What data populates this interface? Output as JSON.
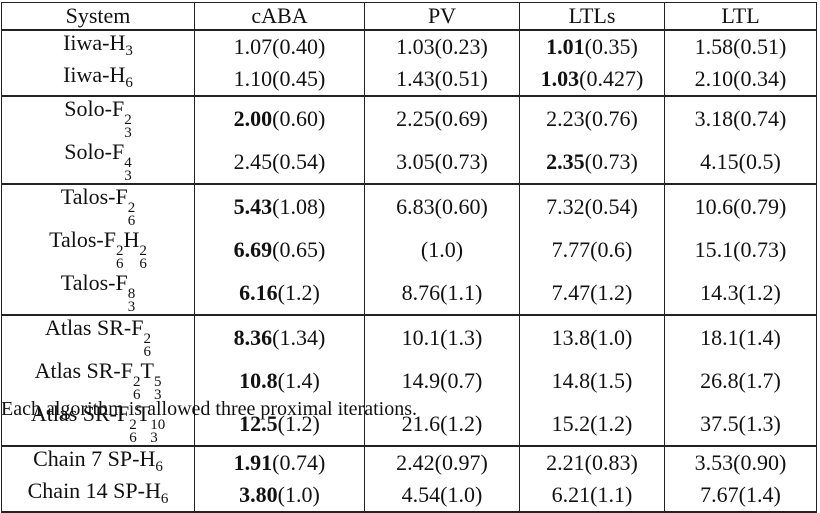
{
  "table": {
    "header": [
      "System",
      "cABA",
      "PV",
      "LTLs",
      "LTL"
    ],
    "groups": [
      [
        {
          "system": [
            "Iiwa-H",
            {
              "sub": "3"
            }
          ],
          "cells": [
            {
              "mean": "1.07",
              "sd": "(0.40)"
            },
            {
              "mean": "1.03",
              "sd": "(0.23)"
            },
            {
              "mean": "1.01",
              "sd": "(0.35)",
              "bold": true
            },
            {
              "mean": "1.58",
              "sd": "(0.51)"
            }
          ]
        },
        {
          "system": [
            "Iiwa-H",
            {
              "sub": "6"
            }
          ],
          "cells": [
            {
              "mean": "1.10",
              "sd": "(0.45)"
            },
            {
              "mean": "1.43",
              "sd": "(0.51)"
            },
            {
              "mean": "1.03",
              "sd": "(0.427)",
              "bold": true
            },
            {
              "mean": "2.10",
              "sd": "(0.34)"
            }
          ]
        }
      ],
      [
        {
          "system": [
            "Solo-F",
            {
              "sup": "2",
              "sub": "3"
            }
          ],
          "cells": [
            {
              "mean": "2.00",
              "sd": "(0.60)",
              "bold": true
            },
            {
              "mean": "2.25",
              "sd": "(0.69)"
            },
            {
              "mean": "2.23",
              "sd": "(0.76)"
            },
            {
              "mean": "3.18",
              "sd": "(0.74)"
            }
          ]
        },
        {
          "system": [
            "Solo-F",
            {
              "sup": "4",
              "sub": "3"
            }
          ],
          "cells": [
            {
              "mean": "2.45",
              "sd": "(0.54)"
            },
            {
              "mean": "3.05",
              "sd": "(0.73)"
            },
            {
              "mean": "2.35",
              "sd": "(0.73)",
              "bold": true
            },
            {
              "mean": "4.15",
              "sd": "(0.5)"
            }
          ]
        }
      ],
      [
        {
          "system": [
            "Talos-F",
            {
              "sup": "2",
              "sub": "6"
            }
          ],
          "cells": [
            {
              "mean": "5.43",
              "sd": "(1.08)",
              "bold": true
            },
            {
              "mean": "6.83",
              "sd": "(0.60)"
            },
            {
              "mean": "7.32",
              "sd": "(0.54)"
            },
            {
              "mean": "10.6",
              "sd": "(0.79)"
            }
          ]
        },
        {
          "system": [
            "Talos-F",
            {
              "sup": "2",
              "sub": "6"
            },
            "H",
            {
              "sup": "2",
              "sub": "6"
            }
          ],
          "cells": [
            {
              "mean": "6.69",
              "sd": "(0.65)",
              "bold": true
            },
            {
              "sd": "(1.0)"
            },
            {
              "mean": "7.77",
              "sd": "(0.6)"
            },
            {
              "mean": "15.1",
              "sd": "(0.73)"
            }
          ]
        },
        {
          "system": [
            "Talos-F",
            {
              "sup": "8",
              "sub": "3"
            }
          ],
          "cells": [
            {
              "mean": "6.16",
              "sd": "(1.2)",
              "bold": true
            },
            {
              "mean": "8.76",
              "sd": "(1.1)"
            },
            {
              "mean": "7.47",
              "sd": "(1.2)"
            },
            {
              "mean": "14.3",
              "sd": "(1.2)"
            }
          ]
        }
      ],
      [
        {
          "system": [
            "Atlas SR-F",
            {
              "sup": "2",
              "sub": "6"
            }
          ],
          "cells": [
            {
              "mean": "8.36",
              "sd": "(1.34)",
              "bold": true
            },
            {
              "mean": "10.1",
              "sd": "(1.3)"
            },
            {
              "mean": "13.8",
              "sd": "(1.0)"
            },
            {
              "mean": "18.1",
              "sd": "(1.4)"
            }
          ]
        },
        {
          "system": [
            "Atlas SR-F",
            {
              "sup": "2",
              "sub": "6"
            },
            "T",
            {
              "sup": "5",
              "sub": "3"
            }
          ],
          "cells": [
            {
              "mean": "10.8",
              "sd": "(1.4)",
              "bold": true
            },
            {
              "mean": "14.9",
              "sd": "(0.7)"
            },
            {
              "mean": "14.8",
              "sd": "(1.5)"
            },
            {
              "mean": "26.8",
              "sd": "(1.7)"
            }
          ]
        },
        {
          "system": [
            "Atlas SR-F",
            {
              "sup": "2",
              "sub": "6"
            },
            "T",
            {
              "sup": "10",
              "sub": "3"
            }
          ],
          "cells": [
            {
              "mean": "12.5",
              "sd": "(1.2)",
              "bold": true
            },
            {
              "mean": "21.6",
              "sd": "(1.2)"
            },
            {
              "mean": "15.2",
              "sd": "(1.2)"
            },
            {
              "mean": "37.5",
              "sd": "(1.3)"
            }
          ]
        }
      ],
      [
        {
          "system": [
            "Chain 7 SP-H",
            {
              "sub": "6"
            }
          ],
          "cells": [
            {
              "mean": "1.91",
              "sd": "(0.74)",
              "bold": true
            },
            {
              "mean": "2.42",
              "sd": "(0.97)"
            },
            {
              "mean": "2.21",
              "sd": "(0.83)"
            },
            {
              "mean": "3.53",
              "sd": "(0.90)"
            }
          ]
        },
        {
          "system": [
            "Chain 14 SP-H",
            {
              "sub": "6"
            }
          ],
          "cells": [
            {
              "mean": "3.80",
              "sd": "(1.0)",
              "bold": true
            },
            {
              "mean": "4.54",
              "sd": "(1.0)"
            },
            {
              "mean": "6.21",
              "sd": "(1.1)"
            },
            {
              "mean": "7.67",
              "sd": "(1.4)"
            }
          ]
        }
      ]
    ],
    "footnote": "Each algorithm is allowed three proximal iterations."
  }
}
